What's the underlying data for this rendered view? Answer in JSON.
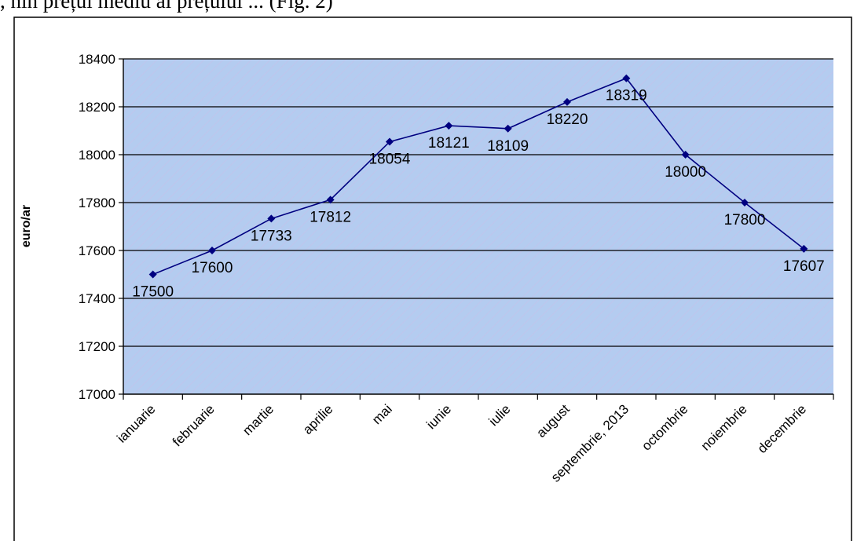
{
  "page": {
    "cropped_text": ", nin prețul mediu al prețului ... (Fig. 2)"
  },
  "colors": {
    "line": "#000080",
    "marker": "#000080",
    "plot_background": "#b4ccf0",
    "plot_texture": "#d2b8e6",
    "gridline": "#000000",
    "text": "#000000",
    "frame": "#000000"
  },
  "chart_data": {
    "type": "line",
    "title": "",
    "xlabel": "",
    "ylabel": "euro/ar",
    "ylim": [
      17000,
      18400
    ],
    "yticks": [
      17000,
      17200,
      17400,
      17600,
      17800,
      18000,
      18200,
      18400
    ],
    "grid": true,
    "legend": "none",
    "categories": [
      "ianuarie",
      "februarie",
      "martie",
      "aprilie",
      "mai",
      "iunie",
      "iulie",
      "august",
      "septembrie, 2013",
      "octombrie",
      "noiembrie",
      "decembrie"
    ],
    "series": [
      {
        "values": [
          17500,
          17600,
          17733,
          17812,
          18054,
          18121,
          18109,
          18220,
          18319,
          18000,
          17800,
          17607
        ],
        "data_labels": true,
        "marker": "diamond"
      }
    ]
  }
}
